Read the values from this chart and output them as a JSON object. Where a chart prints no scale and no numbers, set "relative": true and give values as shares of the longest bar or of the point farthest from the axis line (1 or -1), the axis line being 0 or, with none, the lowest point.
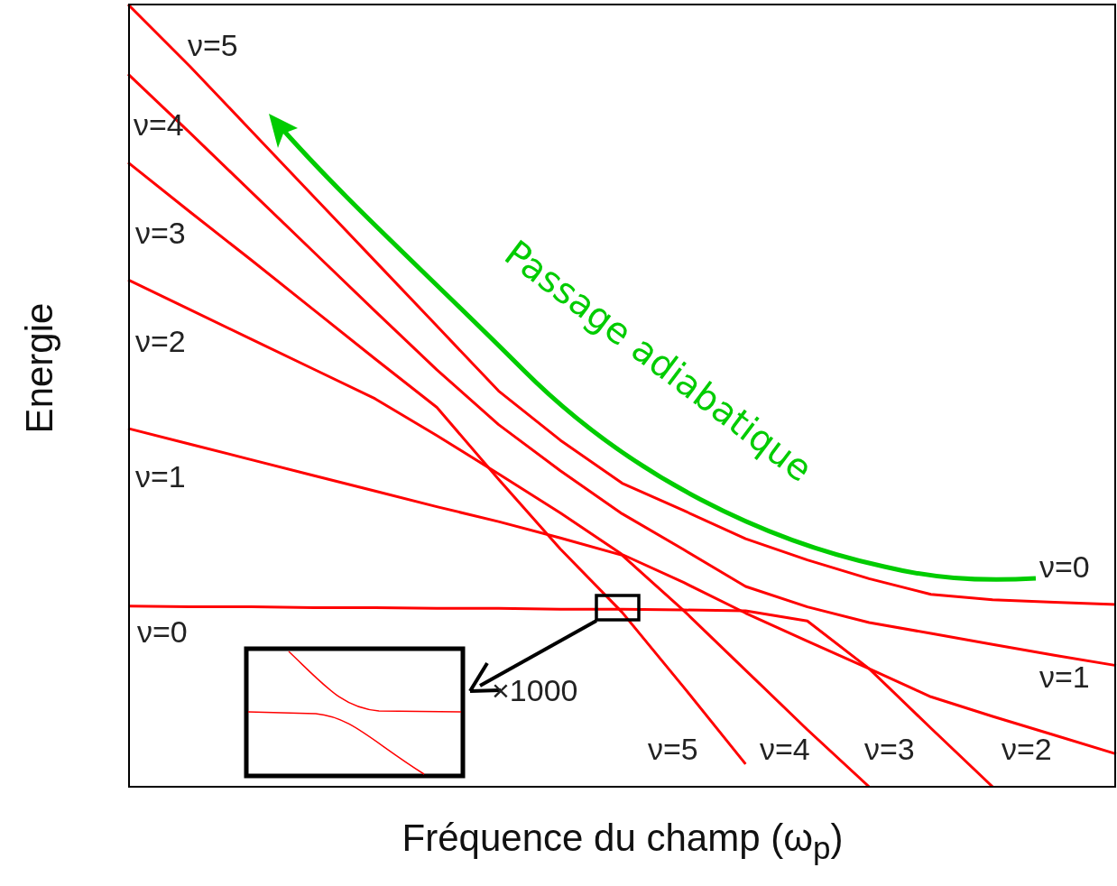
{
  "chart_data": {
    "type": "line",
    "relative": true,
    "xlabel": "Fréquence du champ (ω$_{p}$)",
    "ylabel": "Energie",
    "categories": [
      null,
      null,
      null,
      null,
      null,
      null,
      null,
      null,
      null,
      null,
      null,
      null,
      null,
      null,
      null,
      null,
      null
    ],
    "series": [
      {
        "color": "#ff0000",
        "values": [
          1,
          0.921,
          0.838,
          0.755,
          0.672,
          0.589,
          0.506,
          0.443,
          0.388,
          0.353,
          0.317,
          0.29,
          0.266,
          0.246,
          0.239,
          0.236,
          0.233
        ]
      },
      {
        "color": "#ff0000",
        "values": [
          0.911,
          0.836,
          0.76,
          0.684,
          0.608,
          0.533,
          0.463,
          0.404,
          0.349,
          0.303,
          0.256,
          0.23,
          0.21,
          0.196,
          0.182,
          0.168,
          0.155
        ]
      },
      {
        "color": "#ff0000",
        "values": [
          0.798,
          0.735,
          0.673,
          0.61,
          0.547,
          0.485,
          0.393,
          0.304,
          0.223,
          0.127,
          0.029,
          null,
          null,
          null,
          null,
          null,
          null
        ]
      },
      {
        "color": "#ff0000",
        "values": [
          0.648,
          0.61,
          0.572,
          0.534,
          0.496,
          0.449,
          0.4,
          0.35,
          0.297,
          0.261,
          0.222,
          0.186,
          0.151,
          0.115,
          0.09,
          0.066,
          0.042
        ]
      },
      {
        "color": "#ff0000",
        "values": [
          0.458,
          0.438,
          0.418,
          0.398,
          0.378,
          0.358,
          0.339,
          0.318,
          0.296,
          0.225,
          0.149,
          0.073,
          0,
          null,
          null,
          null,
          null
        ]
      },
      {
        "color": "#ff0000",
        "values": [
          0.231,
          0.23,
          0.23,
          0.229,
          0.229,
          0.228,
          0.228,
          0.227,
          0.227,
          0.226,
          0.225,
          0.212,
          0.151,
          0.075,
          0,
          null,
          null
        ]
      }
    ],
    "annotations": [
      "ν=5",
      "ν=4",
      "ν=3",
      "ν=2",
      "ν=1",
      "ν=0",
      "ν=0",
      "ν=1",
      "ν=5",
      "ν=4",
      "ν=3",
      "ν=2",
      "Passage adiabatique",
      "×1000"
    ],
    "legend": false,
    "marker": "none",
    "line_style": "solid",
    "tick_labels": false
  }
}
